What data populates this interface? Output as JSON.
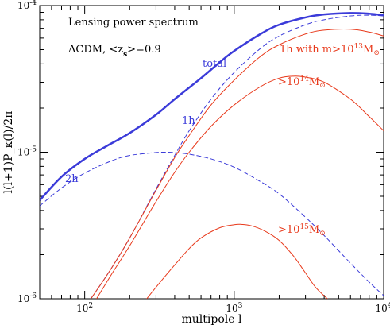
{
  "colors": {
    "blue": "#3b3bd9",
    "red": "#e8391b",
    "black": "#000000"
  },
  "chart_data": {
    "type": "line",
    "title": "Lensing power spectrum",
    "subtitle": "ΛCDM, <z_s>=0.9",
    "subtitle_parts": {
      "prefix": "ΛCDM, <z",
      "sub": "s",
      "suffix": ">=0.9"
    },
    "xlabel": "multipole l",
    "ylabel": "l(l+1)P_κ(l)/2π",
    "x_scale": "log",
    "y_scale": "log",
    "xlim": [
      50,
      10000
    ],
    "ylim": [
      1e-06,
      0.0001
    ],
    "x_ticks": [
      {
        "value": 100,
        "base": "10",
        "exp": "2"
      },
      {
        "value": 1000,
        "base": "10",
        "exp": "3"
      },
      {
        "value": 10000,
        "base": "10",
        "exp": "4"
      }
    ],
    "y_ticks": [
      {
        "value": 1e-06,
        "base": "10",
        "exp": "-6"
      },
      {
        "value": 1e-05,
        "base": "10",
        "exp": "-5"
      },
      {
        "value": 0.0001,
        "base": "10",
        "exp": "-4"
      }
    ],
    "series": [
      {
        "name": "total",
        "color": "blue",
        "style": "solid",
        "width": 2.5,
        "x": [
          50,
          70,
          100,
          140,
          200,
          300,
          400,
          600,
          800,
          1000,
          1500,
          2000,
          3000,
          4000,
          6000,
          8000,
          10000
        ],
        "y": [
          4.7e-06,
          6.8e-06,
          9e-06,
          1.1e-05,
          1.35e-05,
          1.8e-05,
          2.3e-05,
          3.2e-05,
          4.1e-05,
          4.9e-05,
          6.4e-05,
          7.4e-05,
          8.3e-05,
          8.7e-05,
          8.9e-05,
          8.8e-05,
          8.6e-05
        ]
      },
      {
        "name": "1h",
        "color": "blue",
        "style": "dashed",
        "width": 1,
        "x": [
          110,
          150,
          200,
          300,
          400,
          500,
          700,
          1000,
          1500,
          2000,
          3000,
          4000,
          6000,
          8000,
          10000
        ],
        "y": [
          1e-06,
          1.6e-06,
          2.6e-06,
          5.6e-06,
          9.5e-06,
          1.4e-05,
          2.3e-05,
          3.5e-05,
          5.1e-05,
          6.2e-05,
          7.4e-05,
          8e-05,
          8.5e-05,
          8.6e-05,
          8.5e-05
        ]
      },
      {
        "name": "2h",
        "color": "blue",
        "style": "dashed",
        "width": 1,
        "x": [
          50,
          70,
          100,
          150,
          200,
          300,
          350,
          400,
          500,
          700,
          1000,
          1500,
          2000,
          3000,
          4000,
          6000,
          8000,
          10000
        ],
        "y": [
          4.3e-06,
          5.7e-06,
          7.2e-06,
          8.7e-06,
          9.5e-06,
          9.95e-06,
          1e-05,
          9.95e-06,
          9.7e-06,
          9e-06,
          7.9e-06,
          6.3e-06,
          5.2e-06,
          3.6e-06,
          2.7e-06,
          1.75e-06,
          1.3e-06,
          1.05e-06
        ]
      },
      {
        "name": "1h with m>10^13 M☉",
        "color": "red",
        "style": "solid",
        "width": 1,
        "x": [
          110,
          150,
          200,
          300,
          400,
          500,
          700,
          1000,
          1500,
          2000,
          3000,
          4000,
          6000,
          8000,
          10000
        ],
        "y": [
          1e-06,
          1.6e-06,
          2.6e-06,
          5.5e-06,
          9.2e-06,
          1.3e-05,
          2.1e-05,
          3.1e-05,
          4.5e-05,
          5.4e-05,
          6.4e-05,
          6.8e-05,
          6.9e-05,
          6.6e-05,
          6.2e-05
        ]
      },
      {
        "name": ">10^14 M☉",
        "color": "red",
        "style": "solid",
        "width": 1,
        "x": [
          120,
          150,
          200,
          300,
          400,
          500,
          700,
          1000,
          1500,
          2000,
          2500,
          3000,
          4000,
          6000,
          8000,
          10000
        ],
        "y": [
          1e-06,
          1.45e-06,
          2.3e-06,
          4.6e-06,
          7.3e-06,
          1e-05,
          1.5e-05,
          2.1e-05,
          2.8e-05,
          3.2e-05,
          3.3e-05,
          3.25e-05,
          3e-05,
          2.3e-05,
          1.75e-05,
          1.4e-05
        ]
      },
      {
        "name": ">10^15 M☉",
        "color": "red",
        "style": "solid",
        "width": 1,
        "x": [
          260,
          300,
          400,
          500,
          600,
          800,
          1000,
          1100,
          1300,
          1600,
          2000,
          2500,
          3000,
          3500,
          4200
        ],
        "y": [
          1e-06,
          1.2e-06,
          1.7e-06,
          2.2e-06,
          2.6e-06,
          3.05e-06,
          3.2e-06,
          3.22e-06,
          3.15e-06,
          2.9e-06,
          2.5e-06,
          1.95e-06,
          1.5e-06,
          1.2e-06,
          1e-06
        ]
      }
    ],
    "annotations": [
      {
        "key": "total",
        "text": "total",
        "color": "blue"
      },
      {
        "key": "1h",
        "text": "1h",
        "color": "blue"
      },
      {
        "key": "2h",
        "text": "2h",
        "color": "blue"
      },
      {
        "key": "m13",
        "prefix": "1h with m>10",
        "sup": "13",
        "suffix": "M",
        "sub": "⊙",
        "color": "red"
      },
      {
        "key": "m14",
        "prefix": ">10",
        "sup": "14",
        "suffix": "M",
        "sub": "⊙",
        "color": "red"
      },
      {
        "key": "m15",
        "prefix": ">10",
        "sup": "15",
        "suffix": "M",
        "sub": "⊙",
        "color": "red"
      }
    ]
  }
}
